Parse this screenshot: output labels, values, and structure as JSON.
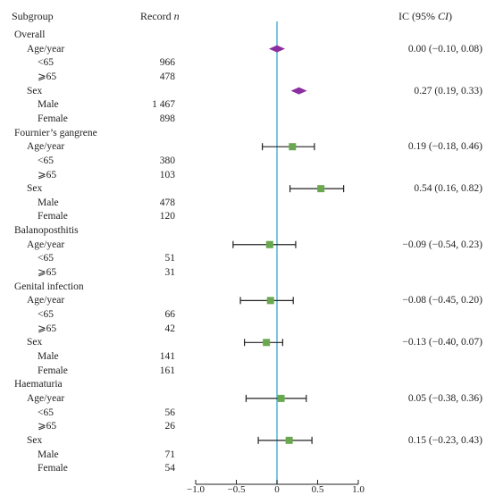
{
  "headers": {
    "subgroup": "Subgroup",
    "record": "Record ",
    "record_n": "n",
    "ic": "IC (95% ",
    "ic_ci": "CI",
    "ic_close": ")"
  },
  "rows": [
    {
      "label": "Overall",
      "level": 0
    },
    {
      "label": "Age/year",
      "level": 1
    },
    {
      "label": "<65",
      "level": 2,
      "n": "966"
    },
    {
      "label": "⩾65",
      "level": 2,
      "n": "478"
    },
    {
      "label": "Sex",
      "level": 1
    },
    {
      "label": "Male",
      "level": 2,
      "n": "1 467"
    },
    {
      "label": "Female",
      "level": 2,
      "n": "898"
    },
    {
      "label": "Fournier’s gangrene",
      "level": 0
    },
    {
      "label": "Age/year",
      "level": 1
    },
    {
      "label": "<65",
      "level": 2,
      "n": "380"
    },
    {
      "label": "⩾65",
      "level": 2,
      "n": "103"
    },
    {
      "label": "Sex",
      "level": 1
    },
    {
      "label": "Male",
      "level": 2,
      "n": "478"
    },
    {
      "label": "Female",
      "level": 2,
      "n": "120"
    },
    {
      "label": "Balanoposthitis",
      "level": 0
    },
    {
      "label": "Age/year",
      "level": 1
    },
    {
      "label": "<65",
      "level": 2,
      "n": "51"
    },
    {
      "label": "⩾65",
      "level": 2,
      "n": "31"
    },
    {
      "label": "Genital infection",
      "level": 0
    },
    {
      "label": "Age/year",
      "level": 1
    },
    {
      "label": "<65",
      "level": 2,
      "n": "66"
    },
    {
      "label": "⩾65",
      "level": 2,
      "n": "42"
    },
    {
      "label": "Sex",
      "level": 1
    },
    {
      "label": "Male",
      "level": 2,
      "n": "141"
    },
    {
      "label": "Female",
      "level": 2,
      "n": "161"
    },
    {
      "label": "Haematuria",
      "level": 0
    },
    {
      "label": "Age/year",
      "level": 1
    },
    {
      "label": "<65",
      "level": 2,
      "n": "56"
    },
    {
      "label": "⩾65",
      "level": 2,
      "n": "26"
    },
    {
      "label": "Sex",
      "level": 1
    },
    {
      "label": "Male",
      "level": 2,
      "n": "71"
    },
    {
      "label": "Female",
      "level": 2,
      "n": "54"
    }
  ],
  "chart_data": {
    "type": "scatter",
    "subtype": "forest-plot",
    "xlim": [
      -1.0,
      1.0
    ],
    "x_ticks": [
      -1.0,
      -0.5,
      0,
      0.5,
      1.0
    ],
    "x_tick_labels": [
      "−1.0",
      "−0.5",
      "0",
      "0.5",
      "1.0"
    ],
    "reference_line": 0,
    "estimates": [
      {
        "row": 1,
        "ic": 0.0,
        "lower": -0.1,
        "upper": 0.08,
        "ci_text": "0.00 (−0.10, 0.08)",
        "marker": "diamond",
        "show_ci": false
      },
      {
        "row": 4,
        "ic": 0.27,
        "lower": 0.19,
        "upper": 0.33,
        "ci_text": "0.27 (0.19, 0.33)",
        "marker": "diamond",
        "show_ci": false
      },
      {
        "row": 8,
        "ic": 0.19,
        "lower": -0.18,
        "upper": 0.46,
        "ci_text": "0.19 (−0.18, 0.46)",
        "marker": "square",
        "show_ci": true
      },
      {
        "row": 11,
        "ic": 0.54,
        "lower": 0.16,
        "upper": 0.82,
        "ci_text": "0.54 (0.16, 0.82)",
        "marker": "square",
        "show_ci": true
      },
      {
        "row": 15,
        "ic": -0.09,
        "lower": -0.54,
        "upper": 0.23,
        "ci_text": "−0.09 (−0.54, 0.23)",
        "marker": "square",
        "show_ci": true
      },
      {
        "row": 19,
        "ic": -0.08,
        "lower": -0.45,
        "upper": 0.2,
        "ci_text": "−0.08 (−0.45, 0.20)",
        "marker": "square",
        "show_ci": true
      },
      {
        "row": 22,
        "ic": -0.13,
        "lower": -0.4,
        "upper": 0.07,
        "ci_text": "−0.13 (−0.40, 0.07)",
        "marker": "square",
        "show_ci": true
      },
      {
        "row": 26,
        "ic": 0.05,
        "lower": -0.38,
        "upper": 0.36,
        "ci_text": "0.05 (−0.38, 0.36)",
        "marker": "square",
        "show_ci": true
      },
      {
        "row": 29,
        "ic": 0.15,
        "lower": -0.23,
        "upper": 0.43,
        "ci_text": "0.15 (−0.23, 0.43)",
        "marker": "square",
        "show_ci": true
      }
    ],
    "colors": {
      "diamond": "#8b2fa0",
      "square": "#6aa84f",
      "reference_line": "#5bb8d4",
      "axis": "#222222",
      "whisker": "#222222"
    }
  }
}
